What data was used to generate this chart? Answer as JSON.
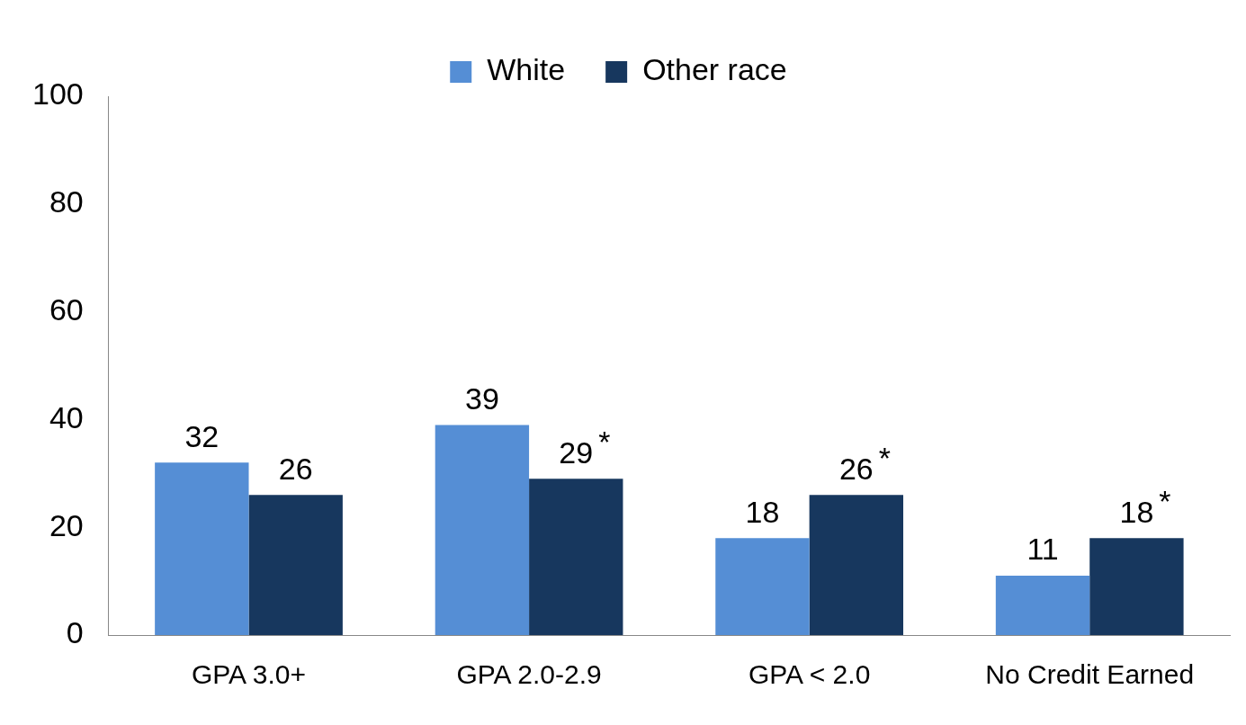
{
  "chart_data": {
    "type": "bar",
    "categories": [
      "GPA 3.0+",
      "GPA 2.0-2.9",
      "GPA < 2.0",
      "No Credit Earned"
    ],
    "series": [
      {
        "name": "White",
        "color": "#558ed5",
        "values": [
          32,
          39,
          18,
          11
        ]
      },
      {
        "name": "Other race",
        "color": "#17375e",
        "values": [
          26,
          29,
          26,
          18
        ]
      }
    ],
    "ylim": [
      0,
      100
    ],
    "yticks": [
      0,
      20,
      40,
      60,
      80,
      100
    ],
    "grid": false,
    "legend": "top",
    "data_labels": true,
    "annotations": [
      {
        "text": "*",
        "x": "GPA 2.0-2.9",
        "y": 29
      },
      {
        "text": "*",
        "x": "GPA < 2.0",
        "y": 26
      },
      {
        "text": "*",
        "x": "No Credit Earned",
        "y": 18
      }
    ]
  }
}
